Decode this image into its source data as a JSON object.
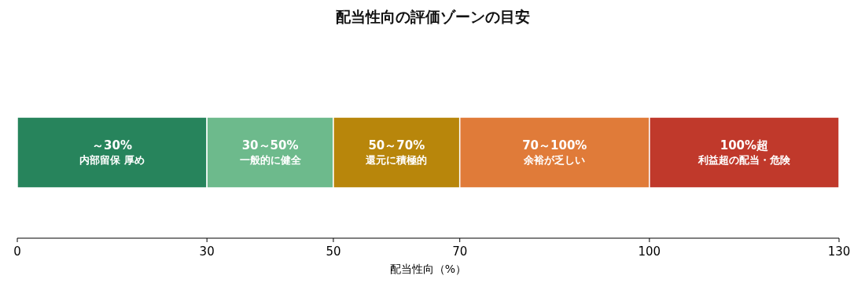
{
  "chart_data": {
    "type": "bar",
    "orientation": "horizontal",
    "stacked": true,
    "title": "配当性向の評価ゾーンの目安",
    "xlabel": "配当性向（%）",
    "categories": [
      null
    ],
    "series": [
      {
        "name": "～30%",
        "color": "#27845c",
        "values": [
          30
        ]
      },
      {
        "name": "30～50%",
        "color": "#6dba8c",
        "values": [
          20
        ]
      },
      {
        "name": "50～70%",
        "color": "#b8860b",
        "values": [
          20
        ]
      },
      {
        "name": "70～100%",
        "color": "#e07b39",
        "values": [
          30
        ]
      },
      {
        "name": "100%超",
        "color": "#c0392b",
        "values": [
          30
        ]
      }
    ],
    "annotations": [
      "内部留保 厚め",
      "一般的に健全",
      "還元に積極的",
      "余裕が乏しい",
      "利益超の配当・危険"
    ],
    "xlim": [
      0,
      130
    ],
    "xticks": [
      0,
      30,
      50,
      70,
      100,
      130
    ],
    "tick_labels": "x",
    "grid": false
  }
}
